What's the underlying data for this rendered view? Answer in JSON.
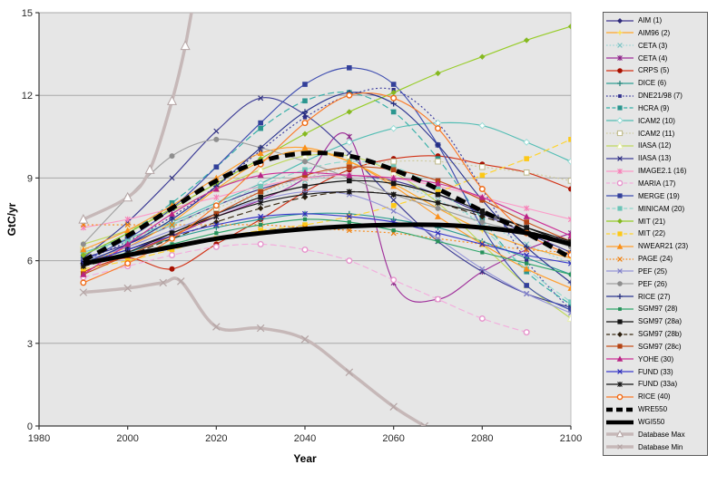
{
  "chart_data": {
    "type": "line",
    "title": "",
    "xlabel": "Year",
    "ylabel": "GtC/yr",
    "xlim": [
      1980,
      2100
    ],
    "ylim": [
      0,
      15
    ],
    "x_ticks": [
      1980,
      2000,
      2020,
      2040,
      2060,
      2080,
      2100
    ],
    "y_ticks": [
      0,
      3,
      6,
      9,
      12,
      15
    ],
    "grid": "horizontal",
    "legend_position": "right",
    "plot_bg": "#e6e6e6",
    "grid_color": "#a8a8a8",
    "axis_color": "#3a3a3a",
    "x_default": [
      1990,
      2000,
      2010,
      2020,
      2030,
      2040,
      2050,
      2060,
      2070,
      2080,
      2090,
      2100
    ],
    "series": [
      {
        "name": "AIM (1)",
        "color": "#403790",
        "marker": "diamond",
        "mcolor": "#2e2a7a",
        "dash": "solid",
        "y": [
          6.1,
          6.6,
          7.3,
          8.0,
          8.6,
          9.0,
          9.1,
          8.9,
          8.4,
          7.7,
          7.0,
          6.3
        ]
      },
      {
        "name": "AIM96 (2)",
        "color": "#ffa629",
        "marker": "star",
        "mcolor": "#ffe14d",
        "dash": "solid",
        "y": [
          5.9,
          6.5,
          7.4,
          8.6,
          9.6,
          10.0,
          9.6,
          8.8,
          7.9,
          7.1,
          6.5,
          6.1
        ]
      },
      {
        "name": "CETA (3)",
        "color": "#9ad6d6",
        "marker": "x",
        "mcolor": "#7cc4c4",
        "dash": "dot",
        "y": [
          6.0,
          6.4,
          7.0,
          7.7,
          8.4,
          8.9,
          9.1,
          8.8,
          8.2,
          7.4,
          6.6,
          5.9
        ]
      },
      {
        "name": "CETA (4)",
        "color": "#a0309b",
        "marker": "asterisk",
        "mcolor": "#8a2386",
        "dash": "solid",
        "y": [
          5.8,
          6.3,
          6.9,
          7.6,
          8.2,
          9.0,
          10.5,
          5.2,
          4.6,
          5.6,
          6.4,
          7.0
        ]
      },
      {
        "name": "CRPS (5)",
        "color": "#d23115",
        "marker": "circle",
        "mcolor": "#a61000",
        "dash": "solid",
        "y": [
          5.6,
          6.1,
          5.7,
          6.6,
          7.5,
          8.5,
          9.3,
          9.7,
          9.8,
          9.5,
          9.2,
          8.6
        ]
      },
      {
        "name": "DICE (6)",
        "color": "#2f9e93",
        "marker": "plus",
        "mcolor": "#23857b",
        "dash": "solid",
        "y": [
          5.9,
          6.3,
          6.8,
          7.2,
          7.5,
          7.7,
          7.7,
          7.5,
          7.2,
          6.7,
          6.1,
          5.5
        ]
      },
      {
        "name": "DNE21/98 (7)",
        "color": "#3a3a9e",
        "marker": "square-small",
        "mcolor": "#2e2e8a",
        "dash": "dot",
        "y": [
          6.0,
          6.7,
          7.6,
          8.7,
          10.0,
          11.2,
          12.0,
          12.2,
          11.0,
          8.6,
          6.0,
          4.2
        ]
      },
      {
        "name": "HCRA (9)",
        "color": "#35afa8",
        "marker": "square",
        "mcolor": "#2b968f",
        "dash": "dash",
        "y": [
          6.2,
          7.0,
          8.1,
          9.4,
          10.8,
          11.8,
          12.1,
          11.4,
          9.7,
          7.5,
          5.6,
          4.4
        ]
      },
      {
        "name": "ICAM2 (10)",
        "color": "#52bdb4",
        "marker": "diamond-open",
        "mcolor": "#9adcd6",
        "dash": "solid",
        "y": [
          6.3,
          6.8,
          7.4,
          8.1,
          8.8,
          9.6,
          10.3,
          10.8,
          11.0,
          10.9,
          10.3,
          9.6
        ]
      },
      {
        "name": "ICAM2 (11)",
        "color": "#cfcb9e",
        "marker": "square-open",
        "mcolor": "#bdb889",
        "dash": "dot",
        "y": [
          6.4,
          6.8,
          7.3,
          7.9,
          8.5,
          9.0,
          9.4,
          9.6,
          9.6,
          9.4,
          9.2,
          8.9
        ]
      },
      {
        "name": "IIASA (12)",
        "color": "#bfd95e",
        "marker": "triangle-open",
        "mcolor": "#e8f0b0",
        "dash": "solid",
        "y": [
          6.6,
          7.1,
          7.8,
          8.6,
          9.3,
          9.8,
          9.8,
          9.2,
          8.1,
          6.6,
          5.1,
          3.9
        ]
      },
      {
        "name": "IIASA (13)",
        "color": "#3c3c96",
        "marker": "x",
        "mcolor": "#303080",
        "dash": "solid",
        "y": [
          6.1,
          7.4,
          9.0,
          10.7,
          11.9,
          11.3,
          9.9,
          8.2,
          6.7,
          5.6,
          4.8,
          4.3
        ]
      },
      {
        "name": "IMAGE2.1 (16)",
        "color": "#fc9ac8",
        "marker": "asterisk",
        "mcolor": "#f580b6",
        "dash": "solid",
        "y": [
          7.2,
          7.5,
          7.9,
          8.3,
          8.7,
          9.0,
          9.1,
          9.0,
          8.7,
          8.3,
          7.9,
          7.5
        ]
      },
      {
        "name": "MARIA (17)",
        "color": "#f3aedd",
        "marker": "circle-open",
        "mcolor": "#e694cc",
        "dash": "dash",
        "x": [
          1990,
          2000,
          2010,
          2020,
          2030,
          2040,
          2050,
          2060,
          2070,
          2080,
          2090
        ],
        "y": [
          5.4,
          5.8,
          6.2,
          6.5,
          6.6,
          6.4,
          6.0,
          5.3,
          4.6,
          3.9,
          3.4
        ]
      },
      {
        "name": "MERGE (19)",
        "color": "#3e4db0",
        "marker": "square",
        "mcolor": "#33409a",
        "dash": "solid",
        "y": [
          6.0,
          6.8,
          7.9,
          9.4,
          11.0,
          12.4,
          13.0,
          12.4,
          10.2,
          7.2,
          5.1,
          4.2
        ]
      },
      {
        "name": "MINICAM (20)",
        "color": "#8fd8cd",
        "marker": "square",
        "mcolor": "#6cc5b8",
        "dash": "dash",
        "y": [
          6.3,
          6.7,
          7.3,
          8.0,
          8.7,
          9.3,
          9.6,
          9.4,
          8.6,
          7.2,
          5.7,
          4.5
        ]
      },
      {
        "name": "MIT (21)",
        "color": "#97cc28",
        "marker": "diamond",
        "mcolor": "#85b821",
        "dash": "solid",
        "y": [
          6.2,
          7.0,
          7.9,
          8.8,
          9.7,
          10.6,
          11.4,
          12.1,
          12.8,
          13.4,
          14.0,
          14.5
        ]
      },
      {
        "name": "MIT (22)",
        "color": "#ffd42e",
        "marker": "square",
        "mcolor": "#fcc818",
        "dash": "dash",
        "y": [
          5.7,
          6.0,
          6.4,
          6.8,
          7.1,
          7.3,
          7.6,
          8.0,
          8.5,
          9.1,
          9.7,
          10.4
        ]
      },
      {
        "name": "NWEAR21 (23)",
        "color": "#ff9e2e",
        "marker": "triangle",
        "mcolor": "#fa8f18",
        "dash": "solid",
        "y": [
          6.4,
          7.1,
          8.0,
          9.0,
          9.9,
          10.1,
          9.6,
          8.7,
          7.6,
          6.6,
          5.7,
          5.0
        ]
      },
      {
        "name": "PAGE (24)",
        "color": "#f98a16",
        "marker": "x",
        "mcolor": "#ef7d08",
        "dash": "dot",
        "y": [
          7.3,
          7.3,
          7.3,
          7.3,
          7.3,
          7.2,
          7.1,
          7.0,
          6.8,
          6.6,
          6.4,
          6.3
        ]
      },
      {
        "name": "PEF (25)",
        "color": "#9696d8",
        "marker": "x",
        "mcolor": "#8080c8",
        "dash": "solid",
        "y": [
          6.0,
          6.5,
          7.1,
          7.7,
          8.2,
          8.5,
          8.4,
          7.8,
          6.8,
          5.7,
          4.8,
          4.1
        ]
      },
      {
        "name": "PEF (26)",
        "color": "#a0a0a0",
        "marker": "circle",
        "mcolor": "#8e8e8e",
        "dash": "solid",
        "y": [
          6.6,
          8.3,
          9.8,
          10.4,
          10.1,
          9.6,
          9.0,
          8.4,
          7.9,
          7.4,
          7.0,
          6.5
        ]
      },
      {
        "name": "RICE (27)",
        "color": "#2b3590",
        "marker": "plus",
        "mcolor": "#222b7c",
        "dash": "solid",
        "y": [
          5.9,
          6.6,
          7.5,
          8.7,
          10.1,
          11.4,
          12.1,
          11.7,
          10.2,
          8.2,
          6.5,
          5.2
        ]
      },
      {
        "name": "SGM97 (28)",
        "color": "#2fa66a",
        "marker": "square-small",
        "mcolor": "#27905a",
        "dash": "solid",
        "y": [
          5.9,
          6.2,
          6.6,
          7.0,
          7.3,
          7.5,
          7.4,
          7.1,
          6.7,
          6.3,
          5.9,
          5.5
        ]
      },
      {
        "name": "SGM97 (28a)",
        "color": "#141414",
        "marker": "square",
        "mcolor": "#141414",
        "dash": "solid",
        "y": [
          5.9,
          6.4,
          7.0,
          7.7,
          8.3,
          8.7,
          8.9,
          8.8,
          8.4,
          7.8,
          7.2,
          6.6
        ]
      },
      {
        "name": "SGM97 (28b)",
        "color": "#3a2a14",
        "marker": "diamond",
        "mcolor": "#2c1f0e",
        "dash": "dash",
        "y": [
          5.8,
          6.2,
          6.8,
          7.4,
          7.9,
          8.3,
          8.5,
          8.4,
          8.1,
          7.6,
          7.1,
          6.6
        ]
      },
      {
        "name": "SGM97 (28c)",
        "color": "#c8521e",
        "marker": "square",
        "mcolor": "#b34415",
        "dash": "solid",
        "y": [
          5.5,
          6.2,
          6.9,
          7.7,
          8.5,
          9.1,
          9.4,
          9.3,
          8.9,
          8.2,
          7.4,
          6.7
        ]
      },
      {
        "name": "YOHE (30)",
        "color": "#cc2f96",
        "marker": "triangle",
        "mcolor": "#b82384",
        "dash": "solid",
        "y": [
          5.5,
          6.6,
          7.7,
          8.6,
          9.1,
          9.2,
          9.1,
          9.0,
          8.8,
          8.3,
          7.6,
          6.9
        ]
      },
      {
        "name": "FUND (33)",
        "color": "#3a3acc",
        "marker": "x",
        "mcolor": "#2e2eb8",
        "dash": "solid",
        "y": [
          5.9,
          6.4,
          6.9,
          7.3,
          7.6,
          7.7,
          7.6,
          7.4,
          7.0,
          6.6,
          6.2,
          5.9
        ]
      },
      {
        "name": "FUND (33a)",
        "color": "#141414",
        "marker": "asterisk",
        "mcolor": "#141414",
        "dash": "solid",
        "y": [
          5.8,
          6.3,
          7.0,
          7.6,
          8.1,
          8.4,
          8.5,
          8.4,
          8.1,
          7.7,
          7.2,
          6.7
        ]
      },
      {
        "name": "RICE (40)",
        "color": "#fb7a28",
        "marker": "circle-open",
        "mcolor": "#f06a15",
        "dash": "solid",
        "y": [
          5.2,
          5.9,
          6.8,
          8.0,
          9.5,
          11.0,
          12.0,
          11.9,
          10.8,
          8.6,
          7.0,
          6.2
        ]
      },
      {
        "name": "WRE550",
        "color": "#000000",
        "marker": "none",
        "dash": "longdash",
        "width": 5,
        "y": [
          6.0,
          6.9,
          7.9,
          8.9,
          9.6,
          9.9,
          9.8,
          9.3,
          8.6,
          7.8,
          7.0,
          6.1
        ]
      },
      {
        "name": "WGI550",
        "color": "#000000",
        "marker": "none",
        "dash": "solid",
        "width": 5,
        "y": [
          5.9,
          6.2,
          6.5,
          6.8,
          7.0,
          7.15,
          7.25,
          7.3,
          7.3,
          7.2,
          7.0,
          6.6
        ]
      },
      {
        "name": "Database Max",
        "color": "#c6b8b8",
        "marker": "triangle-open",
        "mcolor": "#b4a4a4",
        "dash": "solid",
        "width": 3.5,
        "x": [
          1990,
          2000,
          2005,
          2010,
          2013,
          2016
        ],
        "y": [
          7.5,
          8.3,
          9.3,
          11.8,
          13.8,
          16.5
        ]
      },
      {
        "name": "Database Min",
        "color": "#c6b8b8",
        "marker": "x",
        "mcolor": "#b4a4a4",
        "dash": "solid",
        "width": 3.5,
        "x": [
          1990,
          2000,
          2008,
          2012,
          2020,
          2030,
          2040,
          2050,
          2060,
          2067
        ],
        "y": [
          4.85,
          5.0,
          5.2,
          5.25,
          3.6,
          3.55,
          3.15,
          1.95,
          0.7,
          0
        ]
      }
    ]
  }
}
